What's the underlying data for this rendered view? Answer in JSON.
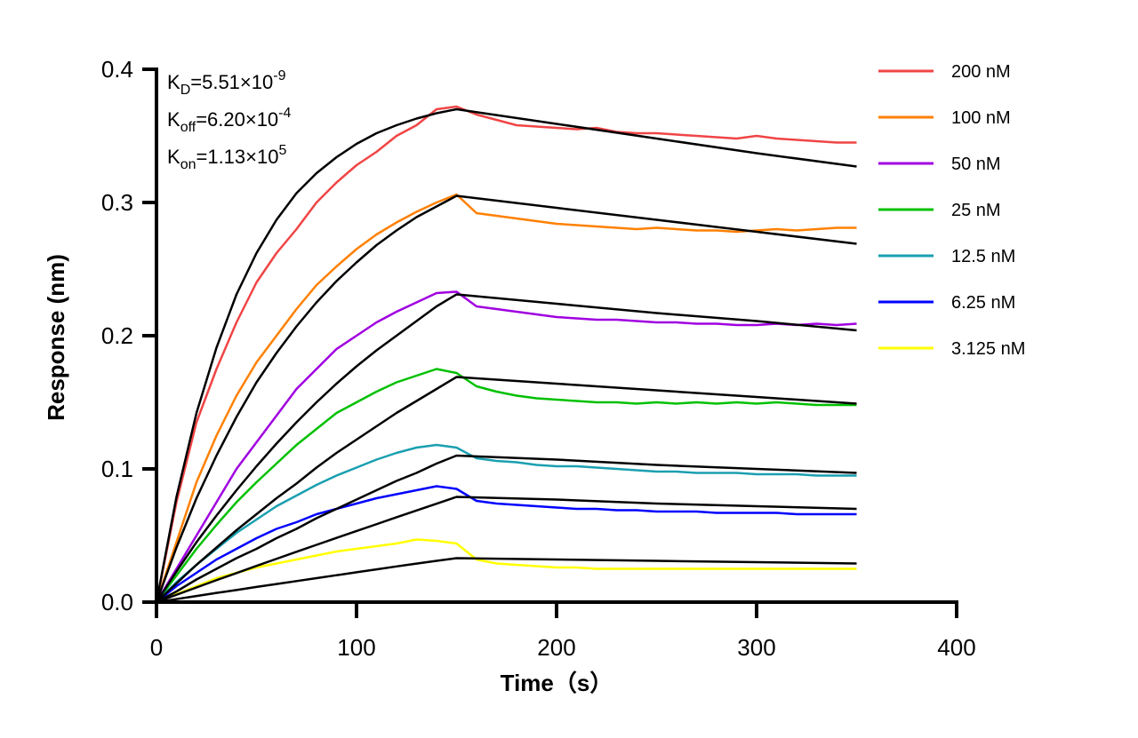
{
  "chart_data": {
    "type": "line",
    "xlabel": "Time（s）",
    "ylabel": "Response (nm)",
    "xlim": [
      0,
      400
    ],
    "ylim": [
      0,
      0.4
    ],
    "xticks": [
      "0",
      "100",
      "200",
      "300",
      "400"
    ],
    "yticks": [
      "0.0",
      "0.1",
      "0.2",
      "0.3",
      "0.4"
    ],
    "grid": false,
    "legend_position": "right",
    "annotation": {
      "kd": {
        "label": "K",
        "sub": "D",
        "value": "=5.51×10",
        "exp": "-9"
      },
      "koff": {
        "label": "K",
        "sub": "off",
        "value": "=6.20×10",
        "exp": "-4"
      },
      "kon": {
        "label": "K",
        "sub": "on",
        "value": "=1.13×10",
        "exp": "5"
      }
    },
    "fit_color": "#000000",
    "x": [
      0,
      10,
      20,
      30,
      40,
      50,
      60,
      70,
      80,
      90,
      100,
      110,
      120,
      130,
      140,
      150,
      160,
      170,
      180,
      190,
      200,
      210,
      220,
      230,
      240,
      250,
      260,
      270,
      280,
      290,
      300,
      310,
      320,
      330,
      340,
      350
    ],
    "fit_x": [
      0,
      10,
      20,
      30,
      40,
      50,
      60,
      70,
      80,
      90,
      100,
      110,
      120,
      130,
      140,
      150,
      200,
      250,
      300,
      350
    ],
    "series": [
      {
        "name": "200 nM",
        "color": "#f04545",
        "values": [
          0,
          0.075,
          0.135,
          0.175,
          0.21,
          0.24,
          0.262,
          0.28,
          0.3,
          0.315,
          0.328,
          0.338,
          0.35,
          0.358,
          0.37,
          0.372,
          0.366,
          0.362,
          0.358,
          0.357,
          0.356,
          0.355,
          0.356,
          0.353,
          0.352,
          0.352,
          0.351,
          0.35,
          0.349,
          0.348,
          0.35,
          0.348,
          0.347,
          0.346,
          0.345,
          0.345
        ],
        "fit": [
          0,
          0.079,
          0.142,
          0.191,
          0.231,
          0.262,
          0.287,
          0.307,
          0.322,
          0.334,
          0.344,
          0.352,
          0.358,
          0.363,
          0.367,
          0.37,
          0.359,
          0.348,
          0.337,
          0.327
        ]
      },
      {
        "name": "100 nM",
        "color": "#ff8000",
        "values": [
          0,
          0.045,
          0.09,
          0.125,
          0.155,
          0.18,
          0.2,
          0.22,
          0.238,
          0.252,
          0.265,
          0.276,
          0.285,
          0.293,
          0.3,
          0.306,
          0.292,
          0.29,
          0.288,
          0.286,
          0.284,
          0.283,
          0.282,
          0.281,
          0.28,
          0.281,
          0.28,
          0.279,
          0.279,
          0.278,
          0.279,
          0.28,
          0.279,
          0.28,
          0.281,
          0.281
        ],
        "fit": [
          0,
          0.041,
          0.078,
          0.11,
          0.139,
          0.165,
          0.187,
          0.207,
          0.225,
          0.241,
          0.255,
          0.268,
          0.279,
          0.289,
          0.297,
          0.305,
          0.296,
          0.287,
          0.278,
          0.269
        ]
      },
      {
        "name": "50 nM",
        "color": "#a000e0",
        "values": [
          0,
          0.025,
          0.05,
          0.075,
          0.1,
          0.12,
          0.14,
          0.16,
          0.175,
          0.19,
          0.2,
          0.21,
          0.218,
          0.225,
          0.232,
          0.233,
          0.222,
          0.22,
          0.218,
          0.216,
          0.214,
          0.213,
          0.212,
          0.212,
          0.211,
          0.21,
          0.21,
          0.209,
          0.209,
          0.208,
          0.208,
          0.209,
          0.208,
          0.209,
          0.208,
          0.209
        ],
        "fit": [
          0,
          0.023,
          0.045,
          0.065,
          0.084,
          0.102,
          0.119,
          0.135,
          0.15,
          0.164,
          0.177,
          0.189,
          0.2,
          0.211,
          0.222,
          0.231,
          0.224,
          0.217,
          0.211,
          0.204
        ]
      },
      {
        "name": "25 nM",
        "color": "#00c000",
        "values": [
          0,
          0.02,
          0.04,
          0.058,
          0.075,
          0.09,
          0.104,
          0.118,
          0.13,
          0.142,
          0.15,
          0.158,
          0.165,
          0.17,
          0.175,
          0.172,
          0.162,
          0.158,
          0.155,
          0.153,
          0.152,
          0.151,
          0.15,
          0.15,
          0.149,
          0.15,
          0.149,
          0.15,
          0.149,
          0.15,
          0.149,
          0.15,
          0.149,
          0.148,
          0.148,
          0.148
        ],
        "fit": [
          0,
          0.014,
          0.028,
          0.041,
          0.054,
          0.066,
          0.078,
          0.089,
          0.101,
          0.112,
          0.122,
          0.132,
          0.142,
          0.151,
          0.16,
          0.169,
          0.164,
          0.159,
          0.154,
          0.149
        ]
      },
      {
        "name": "12.5 nM",
        "color": "#1a9fb0",
        "values": [
          0,
          0.015,
          0.028,
          0.04,
          0.052,
          0.062,
          0.072,
          0.08,
          0.088,
          0.095,
          0.101,
          0.107,
          0.112,
          0.116,
          0.118,
          0.116,
          0.108,
          0.106,
          0.105,
          0.103,
          0.102,
          0.102,
          0.101,
          0.1,
          0.099,
          0.098,
          0.098,
          0.097,
          0.097,
          0.097,
          0.096,
          0.096,
          0.096,
          0.095,
          0.095,
          0.095
        ],
        "fit": [
          0,
          0.008,
          0.017,
          0.025,
          0.033,
          0.04,
          0.048,
          0.055,
          0.063,
          0.07,
          0.077,
          0.084,
          0.091,
          0.097,
          0.104,
          0.11,
          0.107,
          0.103,
          0.1,
          0.097
        ]
      },
      {
        "name": "6.25 nM",
        "color": "#0000ff",
        "values": [
          0,
          0.012,
          0.022,
          0.032,
          0.04,
          0.048,
          0.055,
          0.06,
          0.066,
          0.07,
          0.074,
          0.078,
          0.081,
          0.084,
          0.087,
          0.085,
          0.076,
          0.074,
          0.073,
          0.072,
          0.071,
          0.07,
          0.07,
          0.069,
          0.069,
          0.068,
          0.068,
          0.068,
          0.067,
          0.067,
          0.067,
          0.067,
          0.066,
          0.066,
          0.066,
          0.066
        ],
        "fit": [
          0,
          0.0055,
          0.011,
          0.0165,
          0.0218,
          0.0272,
          0.0325,
          0.0378,
          0.043,
          0.0482,
          0.0534,
          0.0585,
          0.0637,
          0.0688,
          0.0739,
          0.079,
          0.077,
          0.074,
          0.072,
          0.07
        ]
      },
      {
        "name": "3.125 nM",
        "color": "#ffff00",
        "values": [
          0,
          0.006,
          0.012,
          0.018,
          0.022,
          0.026,
          0.029,
          0.032,
          0.035,
          0.038,
          0.04,
          0.042,
          0.044,
          0.047,
          0.046,
          0.044,
          0.032,
          0.029,
          0.028,
          0.027,
          0.026,
          0.026,
          0.025,
          0.025,
          0.025,
          0.025,
          0.025,
          0.025,
          0.025,
          0.025,
          0.025,
          0.025,
          0.025,
          0.025,
          0.025,
          0.025
        ],
        "fit": [
          0,
          0.0023,
          0.0046,
          0.0069,
          0.0091,
          0.0114,
          0.0136,
          0.0158,
          0.018,
          0.0202,
          0.0224,
          0.0246,
          0.0268,
          0.0289,
          0.031,
          0.033,
          0.032,
          0.031,
          0.03,
          0.029
        ]
      }
    ]
  }
}
